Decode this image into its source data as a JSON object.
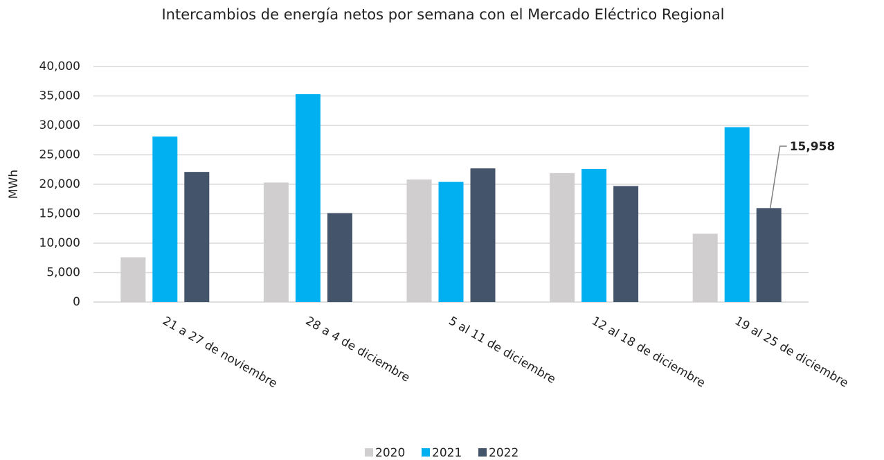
{
  "chart_data": {
    "type": "bar",
    "title": "Intercambios de energía netos por semana con el Mercado Eléctrico Regional",
    "y_label": "MWh",
    "categories": [
      "21 a 27 de noviembre",
      "28 a 4 de diciembre",
      "5 al 11 de diciembre",
      "12 al 18 de diciembre",
      "19 al 25 de diciembre"
    ],
    "series": [
      {
        "name": "2020",
        "color": "#d0cece",
        "values": [
          7600,
          20300,
          20800,
          21900,
          11600
        ]
      },
      {
        "name": "2021",
        "color": "#00b0f0",
        "values": [
          28100,
          35300,
          20400,
          22600,
          29700
        ]
      },
      {
        "name": "2022",
        "color": "#44546a",
        "values": [
          22100,
          15100,
          22700,
          19700,
          15958
        ],
        "value_labels": [
          null,
          null,
          null,
          null,
          "15,958"
        ]
      }
    ],
    "ylim": [
      0,
      40000
    ],
    "yticks": [
      0,
      {
        "value": 5000,
        "label": "5,000"
      },
      {
        "value": 10000,
        "label": "10,000"
      },
      {
        "value": 15000,
        "label": "15,000"
      },
      {
        "value": 20000,
        "label": "20,000"
      },
      {
        "value": 25000,
        "label": "25,000"
      },
      {
        "value": 30000,
        "label": "30,000"
      },
      {
        "value": 35000,
        "label": "35,000"
      },
      {
        "value": 40000,
        "label": "40,000"
      }
    ],
    "grid": true,
    "legend": "bottom"
  }
}
